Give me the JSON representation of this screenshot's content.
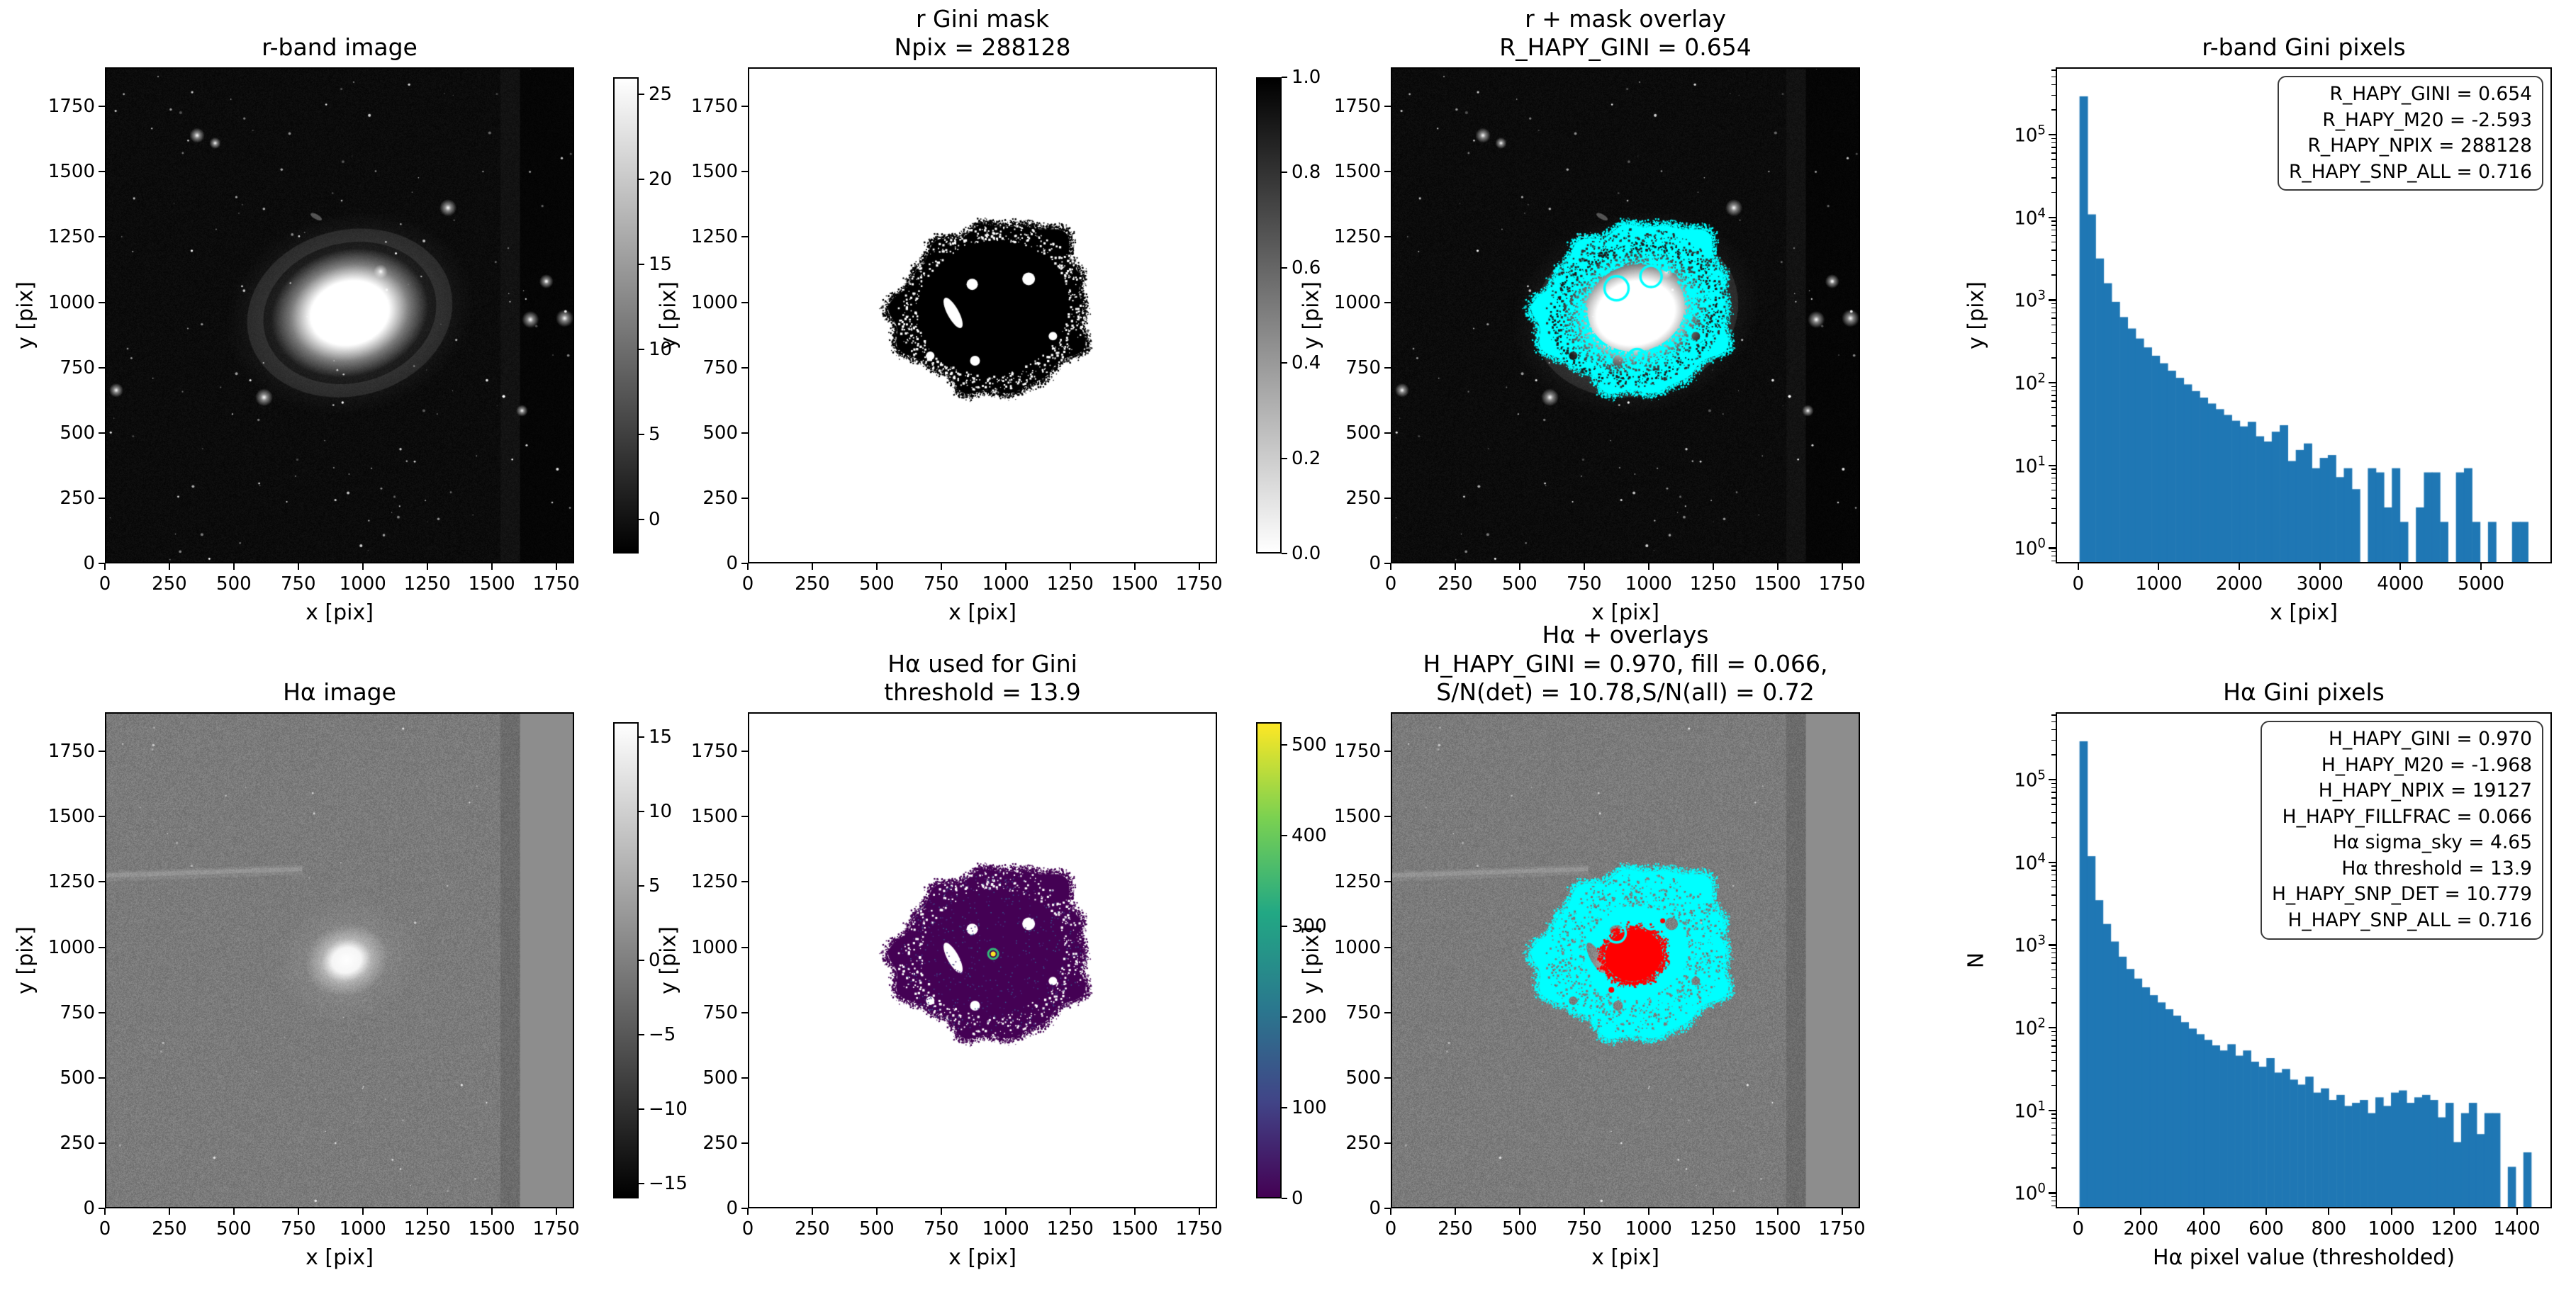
{
  "figure": {
    "background": "#ffffff"
  },
  "colors": {
    "hist_bar": "#1f77b4",
    "mask_overlay_cyan": "#00ffff",
    "core_overlay_red": "#ff0000",
    "viridis_low": "#440154",
    "viridis_high": "#fde725",
    "legend_border": "#3a3a3a"
  },
  "panels": [
    {
      "id": "r-band-image",
      "title": "r-band image",
      "xlabel": "x [pix]",
      "ylabel": "y [pix]",
      "xtick_values": [
        0,
        250,
        500,
        750,
        1000,
        1250,
        1500,
        1750
      ],
      "ytick_values": [
        0,
        250,
        500,
        750,
        1000,
        1250,
        1500,
        1750
      ],
      "xrange": [
        0,
        1820
      ],
      "yrange": [
        0,
        1900
      ],
      "colorbar": {
        "cmap": "gray",
        "vmin": -2,
        "vmax": 26,
        "tick_values": [
          25,
          20,
          15,
          10,
          5,
          0
        ],
        "tick_labels": [
          "25",
          "20",
          "15",
          "10",
          "5",
          "0"
        ]
      }
    },
    {
      "id": "r-gini-mask",
      "title": "r Gini mask\nNpix = 288128",
      "xlabel": "x [pix]",
      "ylabel": "y [pix]",
      "xtick_values": [
        0,
        250,
        500,
        750,
        1000,
        1250,
        1500,
        1750
      ],
      "ytick_values": [
        0,
        250,
        500,
        750,
        1000,
        1250,
        1500,
        1750
      ],
      "xrange": [
        0,
        1820
      ],
      "yrange": [
        0,
        1900
      ],
      "colorbar": {
        "cmap": "gray_r",
        "vmin": 0,
        "vmax": 1,
        "tick_values": [
          1.0,
          0.8,
          0.6,
          0.4,
          0.2,
          0.0
        ],
        "tick_labels": [
          "1.0",
          "0.8",
          "0.6",
          "0.4",
          "0.2",
          "0.0"
        ]
      }
    },
    {
      "id": "r-mask-overlay",
      "title": "r + mask overlay\nR_HAPY_GINI = 0.654",
      "xlabel": "x [pix]",
      "ylabel": "y [pix]",
      "xtick_values": [
        0,
        250,
        500,
        750,
        1000,
        1250,
        1500,
        1750
      ],
      "ytick_values": [
        0,
        250,
        500,
        750,
        1000,
        1250,
        1500,
        1750
      ],
      "xrange": [
        0,
        1820
      ],
      "yrange": [
        0,
        1900
      ]
    },
    {
      "id": "r-band-gini-pixels-hist",
      "title": "r-band Gini pixels",
      "xlabel": "x [pix]",
      "ylabel": "y [pix]",
      "xtick_values": [
        0,
        1000,
        2000,
        3000,
        4000,
        5000
      ],
      "ytick_exponents": [
        0,
        1,
        2,
        3,
        4,
        5
      ],
      "legend_lines": [
        "R_HAPY_GINI = 0.654",
        "R_HAPY_M20 = -2.593",
        "R_HAPY_NPIX = 288128",
        "R_HAPY_SNP_ALL = 0.716"
      ]
    },
    {
      "id": "halpha-image",
      "title": "Hα image",
      "xlabel": "x [pix]",
      "ylabel": "y [pix]",
      "xtick_values": [
        0,
        250,
        500,
        750,
        1000,
        1250,
        1500,
        1750
      ],
      "ytick_values": [
        0,
        250,
        500,
        750,
        1000,
        1250,
        1500,
        1750
      ],
      "xrange": [
        0,
        1820
      ],
      "yrange": [
        0,
        1900
      ],
      "colorbar": {
        "cmap": "gray",
        "vmin": -16,
        "vmax": 16,
        "tick_values": [
          15,
          10,
          5,
          0,
          -5,
          -10,
          -15
        ],
        "tick_labels": [
          "15",
          "10",
          "5",
          "0",
          "−5",
          "−10",
          "−15"
        ]
      }
    },
    {
      "id": "halpha-used-for-gini",
      "title": "Hα used for Gini\nthreshold = 13.9",
      "xlabel": "x [pix]",
      "ylabel": "y [pix]",
      "xtick_values": [
        0,
        250,
        500,
        750,
        1000,
        1250,
        1500,
        1750
      ],
      "ytick_values": [
        0,
        250,
        500,
        750,
        1000,
        1250,
        1500,
        1750
      ],
      "xrange": [
        0,
        1820
      ],
      "yrange": [
        0,
        1900
      ],
      "colorbar": {
        "cmap": "viridis",
        "vmin": 0,
        "vmax": 525,
        "tick_values": [
          500,
          400,
          300,
          200,
          100,
          0
        ],
        "tick_labels": [
          "500",
          "400",
          "300",
          "200",
          "100",
          "0"
        ]
      }
    },
    {
      "id": "halpha-overlays",
      "title": "Hα + overlays\nH_HAPY_GINI = 0.970, fill = 0.066,\nS/N(det) = 10.78,S/N(all) = 0.72",
      "xlabel": "x [pix]",
      "ylabel": "y [pix]",
      "xtick_values": [
        0,
        250,
        500,
        750,
        1000,
        1250,
        1500,
        1750
      ],
      "ytick_values": [
        0,
        250,
        500,
        750,
        1000,
        1250,
        1500,
        1750
      ],
      "xrange": [
        0,
        1820
      ],
      "yrange": [
        0,
        1900
      ]
    },
    {
      "id": "halpha-gini-pixels-hist",
      "title": "Hα Gini pixels",
      "xlabel": "Hα pixel value (thresholded)",
      "ylabel": "N",
      "xtick_values": [
        0,
        200,
        400,
        600,
        800,
        1000,
        1200,
        1400
      ],
      "ytick_exponents": [
        0,
        1,
        2,
        3,
        4,
        5
      ],
      "legend_lines": [
        "H_HAPY_GINI = 0.970",
        "H_HAPY_M20 = -1.968",
        "H_HAPY_NPIX = 19127",
        "H_HAPY_FILLFRAC = 0.066",
        "Hα sigma_sky = 4.65",
        "Hα threshold = 13.9",
        "H_HAPY_SNP_DET = 10.779",
        "H_HAPY_SNP_ALL = 0.716"
      ]
    }
  ],
  "chart_data": [
    {
      "type": "bar",
      "title": "r-band Gini pixels",
      "xlabel": "x [pix]",
      "ylabel": "y [pix]",
      "yscale": "log",
      "xlim": [
        -280,
        5880
      ],
      "ylim": [
        0.65,
        650000
      ],
      "bin_start": 0,
      "bin_width": 100,
      "bar_color": "#1f77b4",
      "legend_position": "upper right",
      "values": [
        300000,
        11000,
        3200,
        1600,
        950,
        620,
        450,
        340,
        265,
        210,
        170,
        138,
        113,
        94,
        78,
        65,
        55,
        47,
        40,
        34,
        29,
        33,
        22,
        19,
        25,
        30,
        11,
        15,
        18,
        9,
        12,
        13,
        7,
        9,
        5,
        0,
        9,
        8,
        3,
        9,
        2,
        0,
        3,
        8,
        8,
        2,
        0,
        8,
        9,
        2,
        0,
        2,
        0,
        0,
        2,
        2
      ]
    },
    {
      "type": "bar",
      "title": "Hα Gini pixels",
      "xlabel": "Hα pixel value (thresholded)",
      "ylabel": "N",
      "yscale": "log",
      "xlim": [
        -72,
        1512
      ],
      "ylim": [
        0.65,
        650000
      ],
      "bin_start": 0,
      "bin_width": 25,
      "bar_color": "#1f77b4",
      "legend_position": "upper right",
      "values": [
        300000,
        12000,
        3500,
        1800,
        1100,
        720,
        510,
        390,
        305,
        245,
        200,
        165,
        138,
        115,
        96,
        82,
        70,
        60,
        52,
        62,
        45,
        52,
        38,
        33,
        42,
        28,
        31,
        23,
        20,
        25,
        16,
        18,
        13,
        15,
        11,
        12,
        13,
        9,
        14,
        11,
        16,
        17,
        12,
        14,
        15,
        13,
        8,
        12,
        4,
        9,
        12,
        5,
        9,
        9,
        0,
        2,
        0,
        3
      ]
    }
  ]
}
